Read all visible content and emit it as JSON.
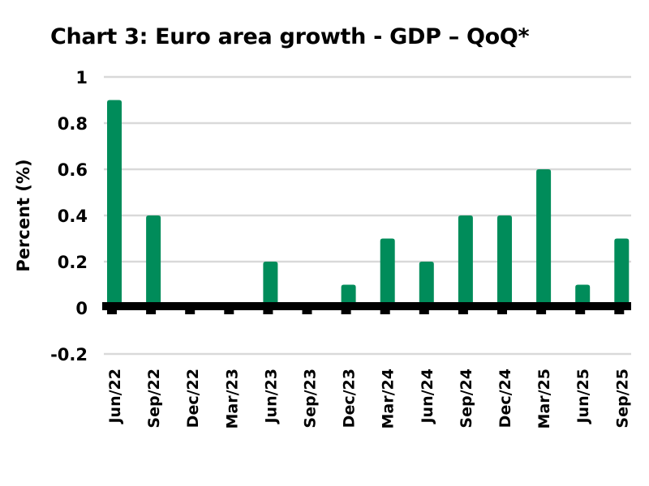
{
  "chart_data": {
    "type": "bar",
    "title": "Chart 3: Euro area growth - GDP – QoQ*",
    "xlabel": "",
    "ylabel": "Percent (%)",
    "ylim": [
      -0.2,
      1
    ],
    "yticks": [
      "1",
      "0.8",
      "0.6",
      "0.4",
      "0.2",
      "0",
      "-0.2"
    ],
    "grid": true,
    "categories": [
      "Jun/22",
      "Sep/22",
      "Dec/22",
      "Mar/23",
      "Jun/23",
      "Sep/23",
      "Dec/23",
      "Mar/24",
      "Jun/24",
      "Sep/24",
      "Dec/24",
      "Mar/25",
      "Jun/25",
      "Sep/25"
    ],
    "values": [
      0.9,
      0.4,
      0,
      0,
      0.2,
      0,
      0.1,
      0.3,
      0.2,
      0.4,
      0.4,
      0.6,
      0.1,
      0.3
    ],
    "colors": {
      "bar": "#008c5a",
      "grid": "#d9d9d9",
      "axis": "#000000"
    }
  }
}
